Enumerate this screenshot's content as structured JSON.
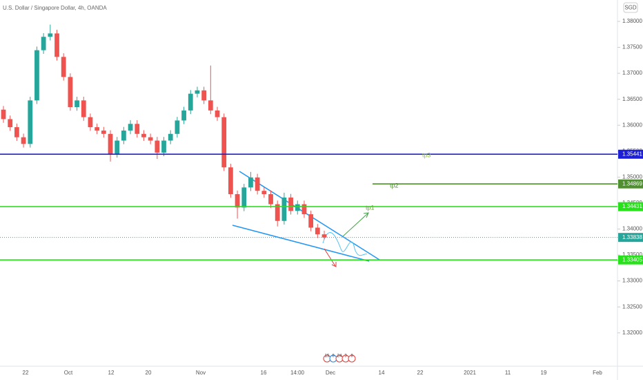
{
  "chart_data": {
    "type": "candlestick",
    "title": "U.S. Dollar / Singapore Dollar, 4h, OANDA",
    "currency_button": "SGD",
    "up_color": "#26a69a",
    "down_color": "#ef5350",
    "ylim": [
      1.31358,
      1.38412
    ],
    "yticks": [
      {
        "value": 1.38,
        "label": "1.38000"
      },
      {
        "value": 1.375,
        "label": "1.37500"
      },
      {
        "value": 1.37,
        "label": "1.37000"
      },
      {
        "value": 1.365,
        "label": "1.36500"
      },
      {
        "value": 1.36,
        "label": "1.36000"
      },
      {
        "value": 1.355,
        "label": "1.35500"
      },
      {
        "value": 1.35,
        "label": "1.35000"
      },
      {
        "value": 1.345,
        "label": "1.34500"
      },
      {
        "value": 1.34,
        "label": "1.34000"
      },
      {
        "value": 1.335,
        "label": "1.33500"
      },
      {
        "value": 1.33,
        "label": "1.33000"
      },
      {
        "value": 1.325,
        "label": "1.32500"
      },
      {
        "value": 1.32,
        "label": "1.32000"
      }
    ],
    "x_labels": [
      "22",
      "Oct",
      "12",
      "20",
      "Nov",
      "16",
      "14:00",
      "Dec",
      "14",
      "22",
      "2021",
      "11",
      "19",
      "Feb"
    ],
    "open": [
      1.363,
      1.36117,
      1.35962,
      1.35768,
      1.35639,
      1.36478,
      1.37445,
      1.37703,
      1.37768,
      1.37316,
      1.36929,
      1.36349,
      1.36478,
      1.36155,
      1.35962,
      1.35897,
      1.35833,
      1.35446,
      1.35704,
      1.35897,
      1.36026,
      1.35833,
      1.35768,
      1.35704,
      1.35472,
      1.35704,
      1.35833,
      1.36091,
      1.36284,
      1.36607,
      1.36671,
      1.36478,
      1.36284,
      1.36155,
      1.35188,
      1.34672,
      1.34414,
      1.34801,
      1.34994,
      1.34736,
      1.34672,
      1.34478,
      1.34156,
      1.34607,
      1.34349,
      1.34478,
      1.34285,
      1.34027,
      1.33898
    ],
    "high": [
      1.3637,
      1.36187,
      1.36032,
      1.35838,
      1.36548,
      1.37515,
      1.37773,
      1.37938,
      1.37838,
      1.37386,
      1.36999,
      1.36548,
      1.36548,
      1.36225,
      1.36032,
      1.35967,
      1.35903,
      1.35774,
      1.35967,
      1.36096,
      1.36096,
      1.35903,
      1.35838,
      1.35774,
      1.35774,
      1.35903,
      1.36161,
      1.36354,
      1.36677,
      1.36741,
      1.36741,
      1.3715,
      1.36354,
      1.36225,
      1.35258,
      1.34742,
      1.34871,
      1.351,
      1.35064,
      1.34806,
      1.34742,
      1.34548,
      1.347,
      1.34677,
      1.34548,
      1.34548,
      1.34355,
      1.34097,
      1.33968
    ],
    "low": [
      1.36047,
      1.35892,
      1.35698,
      1.35569,
      1.35569,
      1.36408,
      1.37375,
      1.37633,
      1.37246,
      1.36859,
      1.36279,
      1.36279,
      1.36085,
      1.35892,
      1.35827,
      1.35763,
      1.353,
      1.35376,
      1.35634,
      1.35827,
      1.35763,
      1.35698,
      1.35634,
      1.3535,
      1.35402,
      1.35634,
      1.35763,
      1.36021,
      1.36214,
      1.36537,
      1.36408,
      1.36214,
      1.36085,
      1.35118,
      1.34602,
      1.342,
      1.34344,
      1.34731,
      1.34666,
      1.34602,
      1.34408,
      1.3405,
      1.34086,
      1.34279,
      1.34279,
      1.34215,
      1.33957,
      1.33828,
      1.338
    ],
    "close": [
      1.36117,
      1.35962,
      1.35768,
      1.35639,
      1.36478,
      1.37445,
      1.37703,
      1.37768,
      1.37316,
      1.36929,
      1.36349,
      1.36478,
      1.36155,
      1.35962,
      1.35897,
      1.35833,
      1.35446,
      1.35704,
      1.35897,
      1.36026,
      1.35833,
      1.35768,
      1.35704,
      1.35472,
      1.35704,
      1.35833,
      1.36091,
      1.36284,
      1.36607,
      1.36671,
      1.36478,
      1.36284,
      1.36155,
      1.35188,
      1.34672,
      1.34414,
      1.34801,
      1.34994,
      1.34736,
      1.34672,
      1.34478,
      1.34156,
      1.34607,
      1.34349,
      1.34478,
      1.34285,
      1.34027,
      1.33898,
      1.33838
    ],
    "levels": [
      {
        "value": 1.35441,
        "color": "#1c1fd6"
      },
      {
        "value": 1.34869,
        "color": "#4f8f30"
      },
      {
        "value": 1.34431,
        "color": "#27e21a"
      },
      {
        "value": 1.33838,
        "color": "#26a69a"
      },
      {
        "value": 1.33405,
        "color": "#27e21a"
      }
    ],
    "annotations": [
      "tp3",
      "tp2",
      "tp1"
    ],
    "events": [
      "15",
      "8",
      "24",
      "3",
      "8"
    ]
  }
}
